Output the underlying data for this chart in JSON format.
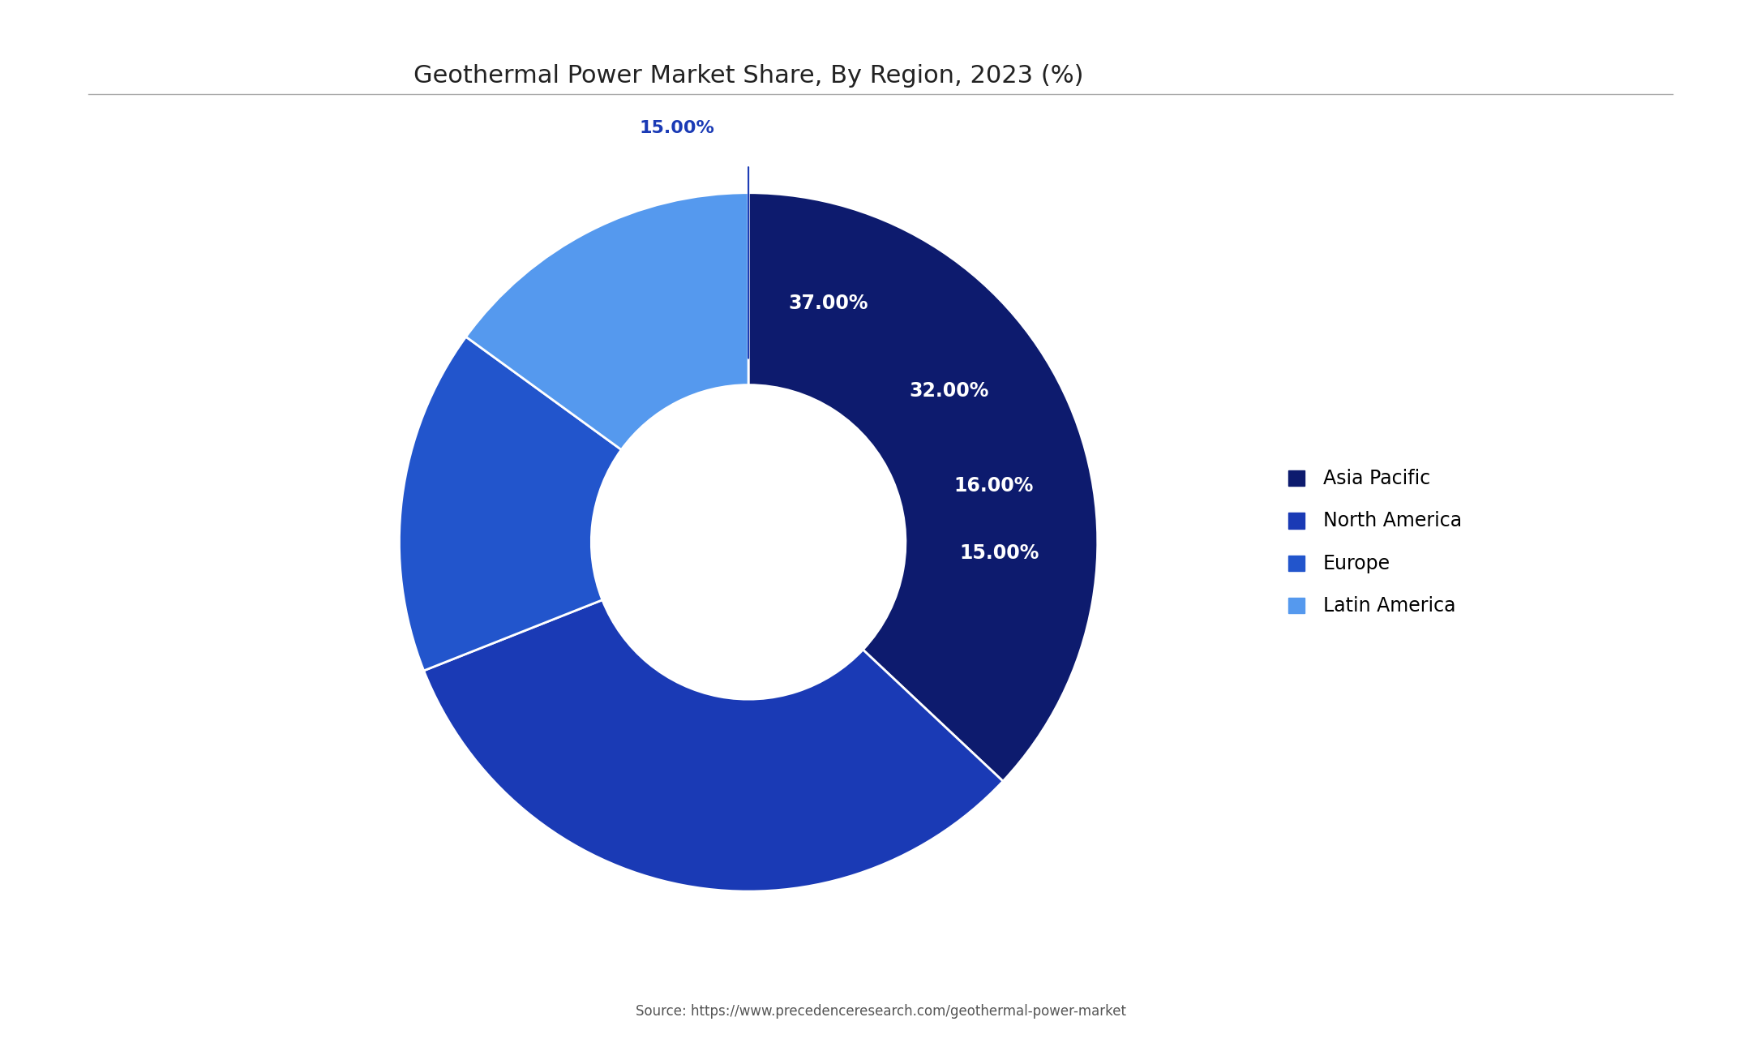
{
  "title": "Geothermal Power Market Share, By Region, 2023 (%)",
  "slices": [
    37.0,
    32.0,
    16.0,
    15.0
  ],
  "labels": [
    "Asia Pacific",
    "North America",
    "Europe",
    "Latin America"
  ],
  "colors": [
    "#0d1b6e",
    "#1a3ab5",
    "#2255cc",
    "#5599ee"
  ],
  "pct_labels": [
    "37.00%",
    "32.00%",
    "16.00%",
    "15.00%"
  ],
  "source_text": "Source: https://www.precedenceresearch.com/geothermal-power-market",
  "background_color": "#ffffff",
  "title_fontsize": 22,
  "label_fontsize": 16,
  "legend_fontsize": 17
}
